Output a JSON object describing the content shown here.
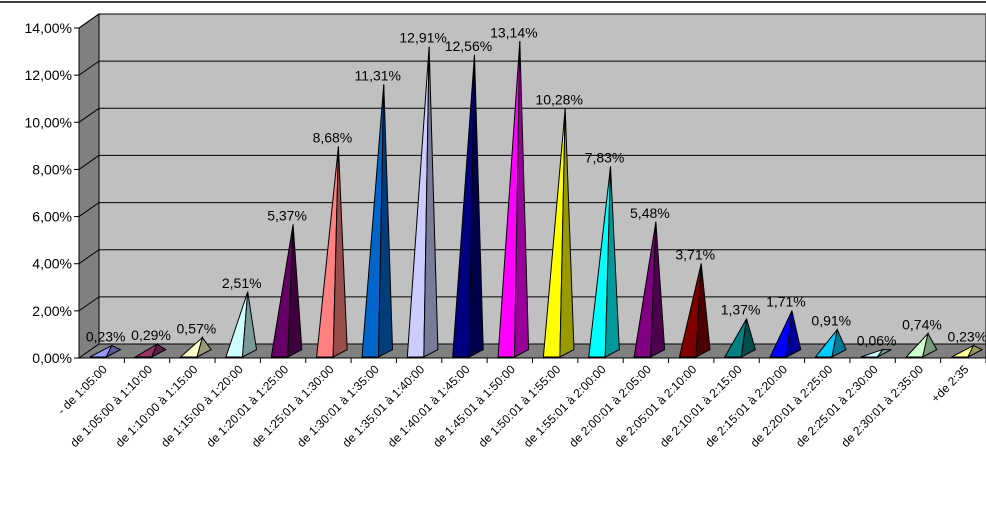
{
  "chart_data": {
    "type": "bar",
    "style": "3d-cone",
    "categories": [
      "- de 1:05:00",
      "de 1:05:00 à 1:10:00",
      "de 1:10:00 à 1:15:00",
      "de 1:15:00 à 1:20:00",
      "de 1:20:01 à 1:25:00",
      "de 1:25:01 à 1:30:00",
      "de 1:30:01 à 1:35:00",
      "de 1:35:01 à 1:40:00",
      "de 1:40:01 à 1:45:00",
      "de 1:45:01 à 1:50:00",
      "de 1:50:01 à 1:55:00",
      "de 1:55:01 à 2:00:00",
      "de 2:00:01 à 2:05:00",
      "de 2:05:01 à 2:10:00",
      "de 2:10:01 à 2:15:00",
      "de 2:15:01 à 2:20:00",
      "de 2:20:01 à 2:25:00",
      "de 2:25:01 à 2:30:00",
      "de 2:30:01 à 2:35:00",
      "+de 2:35"
    ],
    "values": [
      0.23,
      0.29,
      0.57,
      2.51,
      5.37,
      8.68,
      11.31,
      12.91,
      12.56,
      13.14,
      10.28,
      7.83,
      5.48,
      3.71,
      1.37,
      1.71,
      0.91,
      0.06,
      0.74,
      0.23
    ],
    "data_labels": [
      "0,23%",
      "0,29%",
      "0,57%",
      "2,51%",
      "5,37%",
      "8,68%",
      "11,31%",
      "12,91%",
      "12,56%",
      "13,14%",
      "10,28%",
      "7,83%",
      "5,48%",
      "3,71%",
      "1,37%",
      "1,71%",
      "0,91%",
      "0,06%",
      "0,74%",
      "0,23%"
    ],
    "colors": [
      "#9999ff",
      "#993366",
      "#ffffcc",
      "#ccffff",
      "#660066",
      "#ff8080",
      "#0066cc",
      "#ccccff",
      "#000080",
      "#ff00ff",
      "#ffff00",
      "#00ffff",
      "#800080",
      "#800000",
      "#008080",
      "#0000ff",
      "#00ccff",
      "#ccffff",
      "#ccffcc",
      "#ffff99"
    ],
    "ylim": [
      0,
      14
    ],
    "y_ticks": [
      "0,00%",
      "2,00%",
      "4,00%",
      "6,00%",
      "8,00%",
      "10,00%",
      "12,00%",
      "14,00%"
    ],
    "grid": true,
    "legend": "none",
    "title": "",
    "xlabel": "",
    "ylabel": "",
    "plot_background": "#c0c0c0",
    "wall_color": "#808080"
  }
}
